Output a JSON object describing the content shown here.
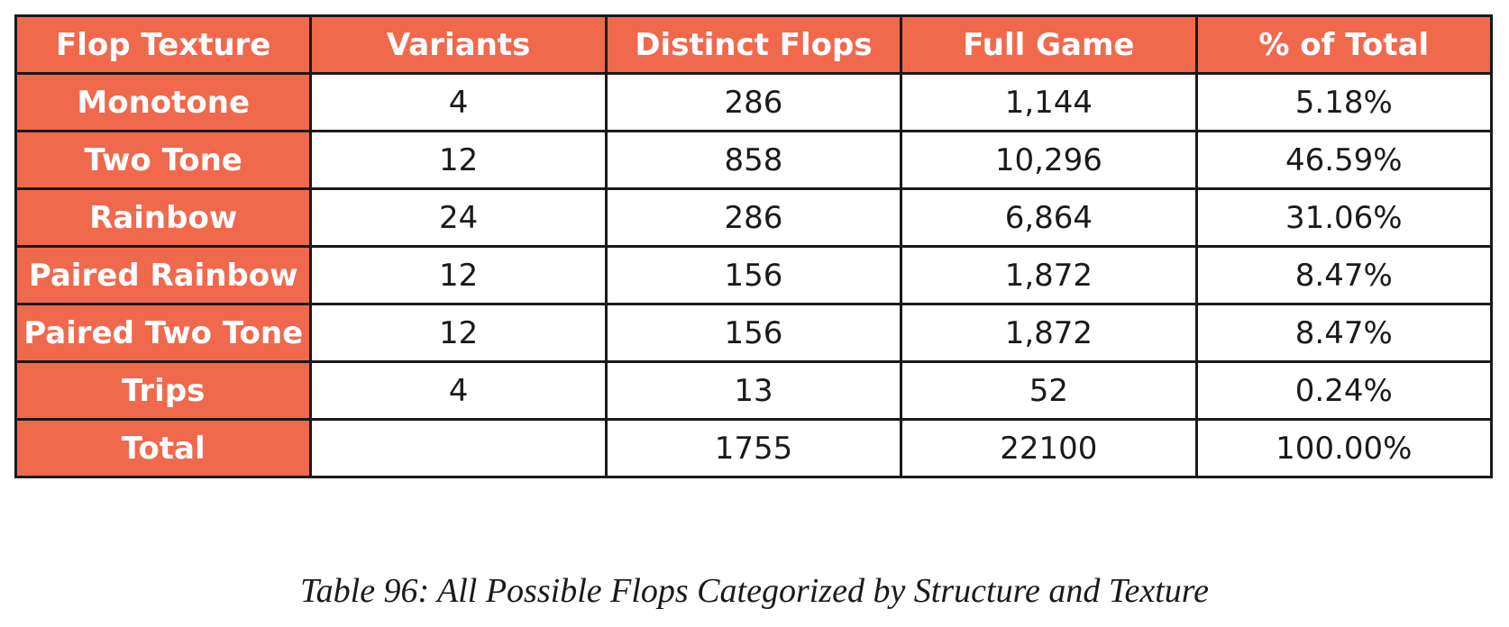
{
  "table": {
    "headers": [
      "Flop Texture",
      "Variants",
      "Distinct Flops",
      "Full Game",
      "% of Total"
    ],
    "rows": [
      [
        "Monotone",
        "4",
        "286",
        "1,144",
        "5.18%"
      ],
      [
        "Two Tone",
        "12",
        "858",
        "10,296",
        "46.59%"
      ],
      [
        "Rainbow",
        "24",
        "286",
        "6,864",
        "31.06%"
      ],
      [
        "Paired Rainbow",
        "12",
        "156",
        "1,872",
        "8.47%"
      ],
      [
        "Paired Two Tone",
        "12",
        "156",
        "1,872",
        "8.47%"
      ],
      [
        "Trips",
        "4",
        "13",
        "52",
        "0.24%"
      ],
      [
        "Total",
        "",
        "1755",
        "22100",
        "100.00%"
      ]
    ]
  },
  "caption": "Table 96: All Possible Flops Categorized by Structure and Texture",
  "colors": {
    "header_bg": "#f0694d",
    "header_text": "#ffffff",
    "cell_bg": "#ffffff",
    "border": "#1a1a1a"
  }
}
